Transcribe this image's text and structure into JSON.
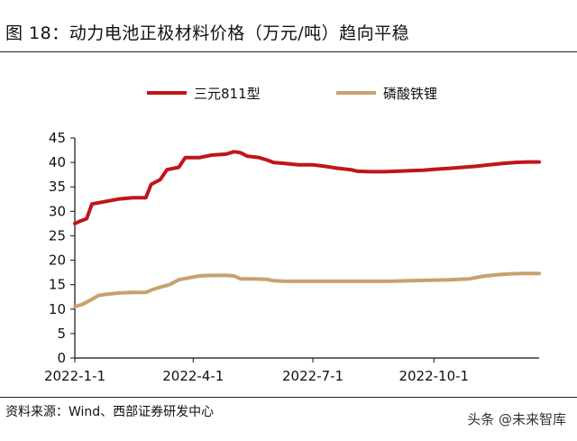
{
  "figure": {
    "title": "图 18：动力电池正极材料价格（万元/吨）趋向平稳",
    "source": "资料来源：Wind、西部证券研发中心",
    "watermark": "头条 @未来智库"
  },
  "chart_data": {
    "type": "line",
    "xlabel": "",
    "ylabel": "",
    "ylim": [
      0,
      45
    ],
    "yticks": [
      0,
      5,
      10,
      15,
      20,
      25,
      30,
      35,
      40,
      45
    ],
    "xticks": [
      "2022-1-1",
      "2022-4-1",
      "2022-7-1",
      "2022-10-1"
    ],
    "xlim": [
      "2022-1-1",
      "2022-12-20"
    ],
    "grid": false,
    "legend_position": "top",
    "series": [
      {
        "name": "三元811型",
        "color": "#c0151b",
        "points": [
          [
            "2022-1-1",
            27.5
          ],
          [
            "2022-1-5",
            28.0
          ],
          [
            "2022-1-10",
            28.5
          ],
          [
            "2022-1-14",
            31.5
          ],
          [
            "2022-1-24",
            32.0
          ],
          [
            "2022-2-3",
            32.5
          ],
          [
            "2022-2-14",
            32.8
          ],
          [
            "2022-2-24",
            32.8
          ],
          [
            "2022-2-28",
            35.5
          ],
          [
            "2022-3-7",
            36.5
          ],
          [
            "2022-3-12",
            38.5
          ],
          [
            "2022-3-21",
            39.0
          ],
          [
            "2022-3-26",
            41.0
          ],
          [
            "2022-4-6",
            41.0
          ],
          [
            "2022-4-15",
            41.5
          ],
          [
            "2022-4-26",
            41.7
          ],
          [
            "2022-5-2",
            42.2
          ],
          [
            "2022-5-7",
            42.0
          ],
          [
            "2022-5-12",
            41.3
          ],
          [
            "2022-5-21",
            41.0
          ],
          [
            "2022-5-27",
            40.5
          ],
          [
            "2022-6-1",
            40.0
          ],
          [
            "2022-6-10",
            39.8
          ],
          [
            "2022-6-20",
            39.5
          ],
          [
            "2022-7-1",
            39.5
          ],
          [
            "2022-7-10",
            39.2
          ],
          [
            "2022-7-20",
            38.8
          ],
          [
            "2022-7-30",
            38.5
          ],
          [
            "2022-8-4",
            38.2
          ],
          [
            "2022-8-14",
            38.1
          ],
          [
            "2022-8-24",
            38.1
          ],
          [
            "2022-9-3",
            38.2
          ],
          [
            "2022-9-13",
            38.3
          ],
          [
            "2022-9-23",
            38.4
          ],
          [
            "2022-10-1",
            38.6
          ],
          [
            "2022-10-13",
            38.8
          ],
          [
            "2022-10-23",
            39.0
          ],
          [
            "2022-11-2",
            39.2
          ],
          [
            "2022-11-12",
            39.5
          ],
          [
            "2022-11-22",
            39.8
          ],
          [
            "2022-12-2",
            40.0
          ],
          [
            "2022-12-12",
            40.1
          ],
          [
            "2022-12-20",
            40.1
          ]
        ]
      },
      {
        "name": "磷酸铁锂",
        "color": "#c9a06e",
        "points": [
          [
            "2022-1-1",
            10.5
          ],
          [
            "2022-1-7",
            11.0
          ],
          [
            "2022-1-14",
            12.0
          ],
          [
            "2022-1-19",
            12.8
          ],
          [
            "2022-1-24",
            13.0
          ],
          [
            "2022-2-3",
            13.3
          ],
          [
            "2022-2-14",
            13.4
          ],
          [
            "2022-2-24",
            13.4
          ],
          [
            "2022-3-1",
            14.0
          ],
          [
            "2022-3-7",
            14.5
          ],
          [
            "2022-3-14",
            15.0
          ],
          [
            "2022-3-21",
            16.0
          ],
          [
            "2022-3-31",
            16.5
          ],
          [
            "2022-4-6",
            16.8
          ],
          [
            "2022-4-15",
            16.9
          ],
          [
            "2022-4-26",
            16.9
          ],
          [
            "2022-5-2",
            16.8
          ],
          [
            "2022-5-7",
            16.2
          ],
          [
            "2022-5-17",
            16.2
          ],
          [
            "2022-5-27",
            16.1
          ],
          [
            "2022-6-1",
            15.8
          ],
          [
            "2022-6-10",
            15.7
          ],
          [
            "2022-6-20",
            15.7
          ],
          [
            "2022-7-1",
            15.7
          ],
          [
            "2022-7-20",
            15.7
          ],
          [
            "2022-8-9",
            15.7
          ],
          [
            "2022-8-29",
            15.7
          ],
          [
            "2022-9-13",
            15.8
          ],
          [
            "2022-9-28",
            15.9
          ],
          [
            "2022-10-13",
            16.0
          ],
          [
            "2022-10-28",
            16.2
          ],
          [
            "2022-11-7",
            16.7
          ],
          [
            "2022-11-17",
            17.0
          ],
          [
            "2022-11-27",
            17.2
          ],
          [
            "2022-12-7",
            17.3
          ],
          [
            "2022-12-20",
            17.3
          ]
        ]
      }
    ]
  }
}
